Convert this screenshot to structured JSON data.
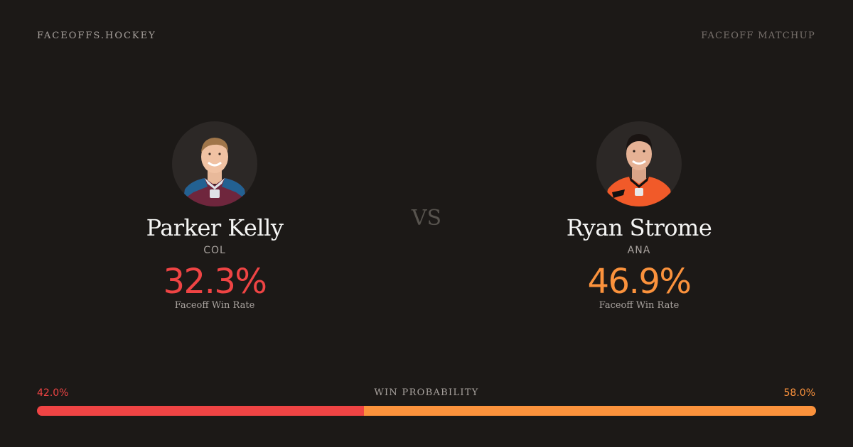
{
  "header": {
    "brand": "FACEOFFS.HOCKEY",
    "label": "FACEOFF MATCHUP"
  },
  "vs_label": "VS",
  "players": {
    "left": {
      "name": "Parker Kelly",
      "team": "COL",
      "faceoff_win_rate": "32.3%",
      "rate_label": "Faceoff Win Rate",
      "jersey_color": "#6f263d",
      "jersey_accent": "#236192"
    },
    "right": {
      "name": "Ryan Strome",
      "team": "ANA",
      "faceoff_win_rate": "46.9%",
      "rate_label": "Faceoff Win Rate",
      "jersey_color": "#f47a38",
      "jersey_accent": "#111111"
    }
  },
  "win_probability": {
    "title": "WIN PROBABILITY",
    "left_label": "42.0%",
    "right_label": "58.0%",
    "left_value": 42.0,
    "right_value": 58.0,
    "left_color": "#ef4444",
    "right_color": "#fb923c"
  }
}
